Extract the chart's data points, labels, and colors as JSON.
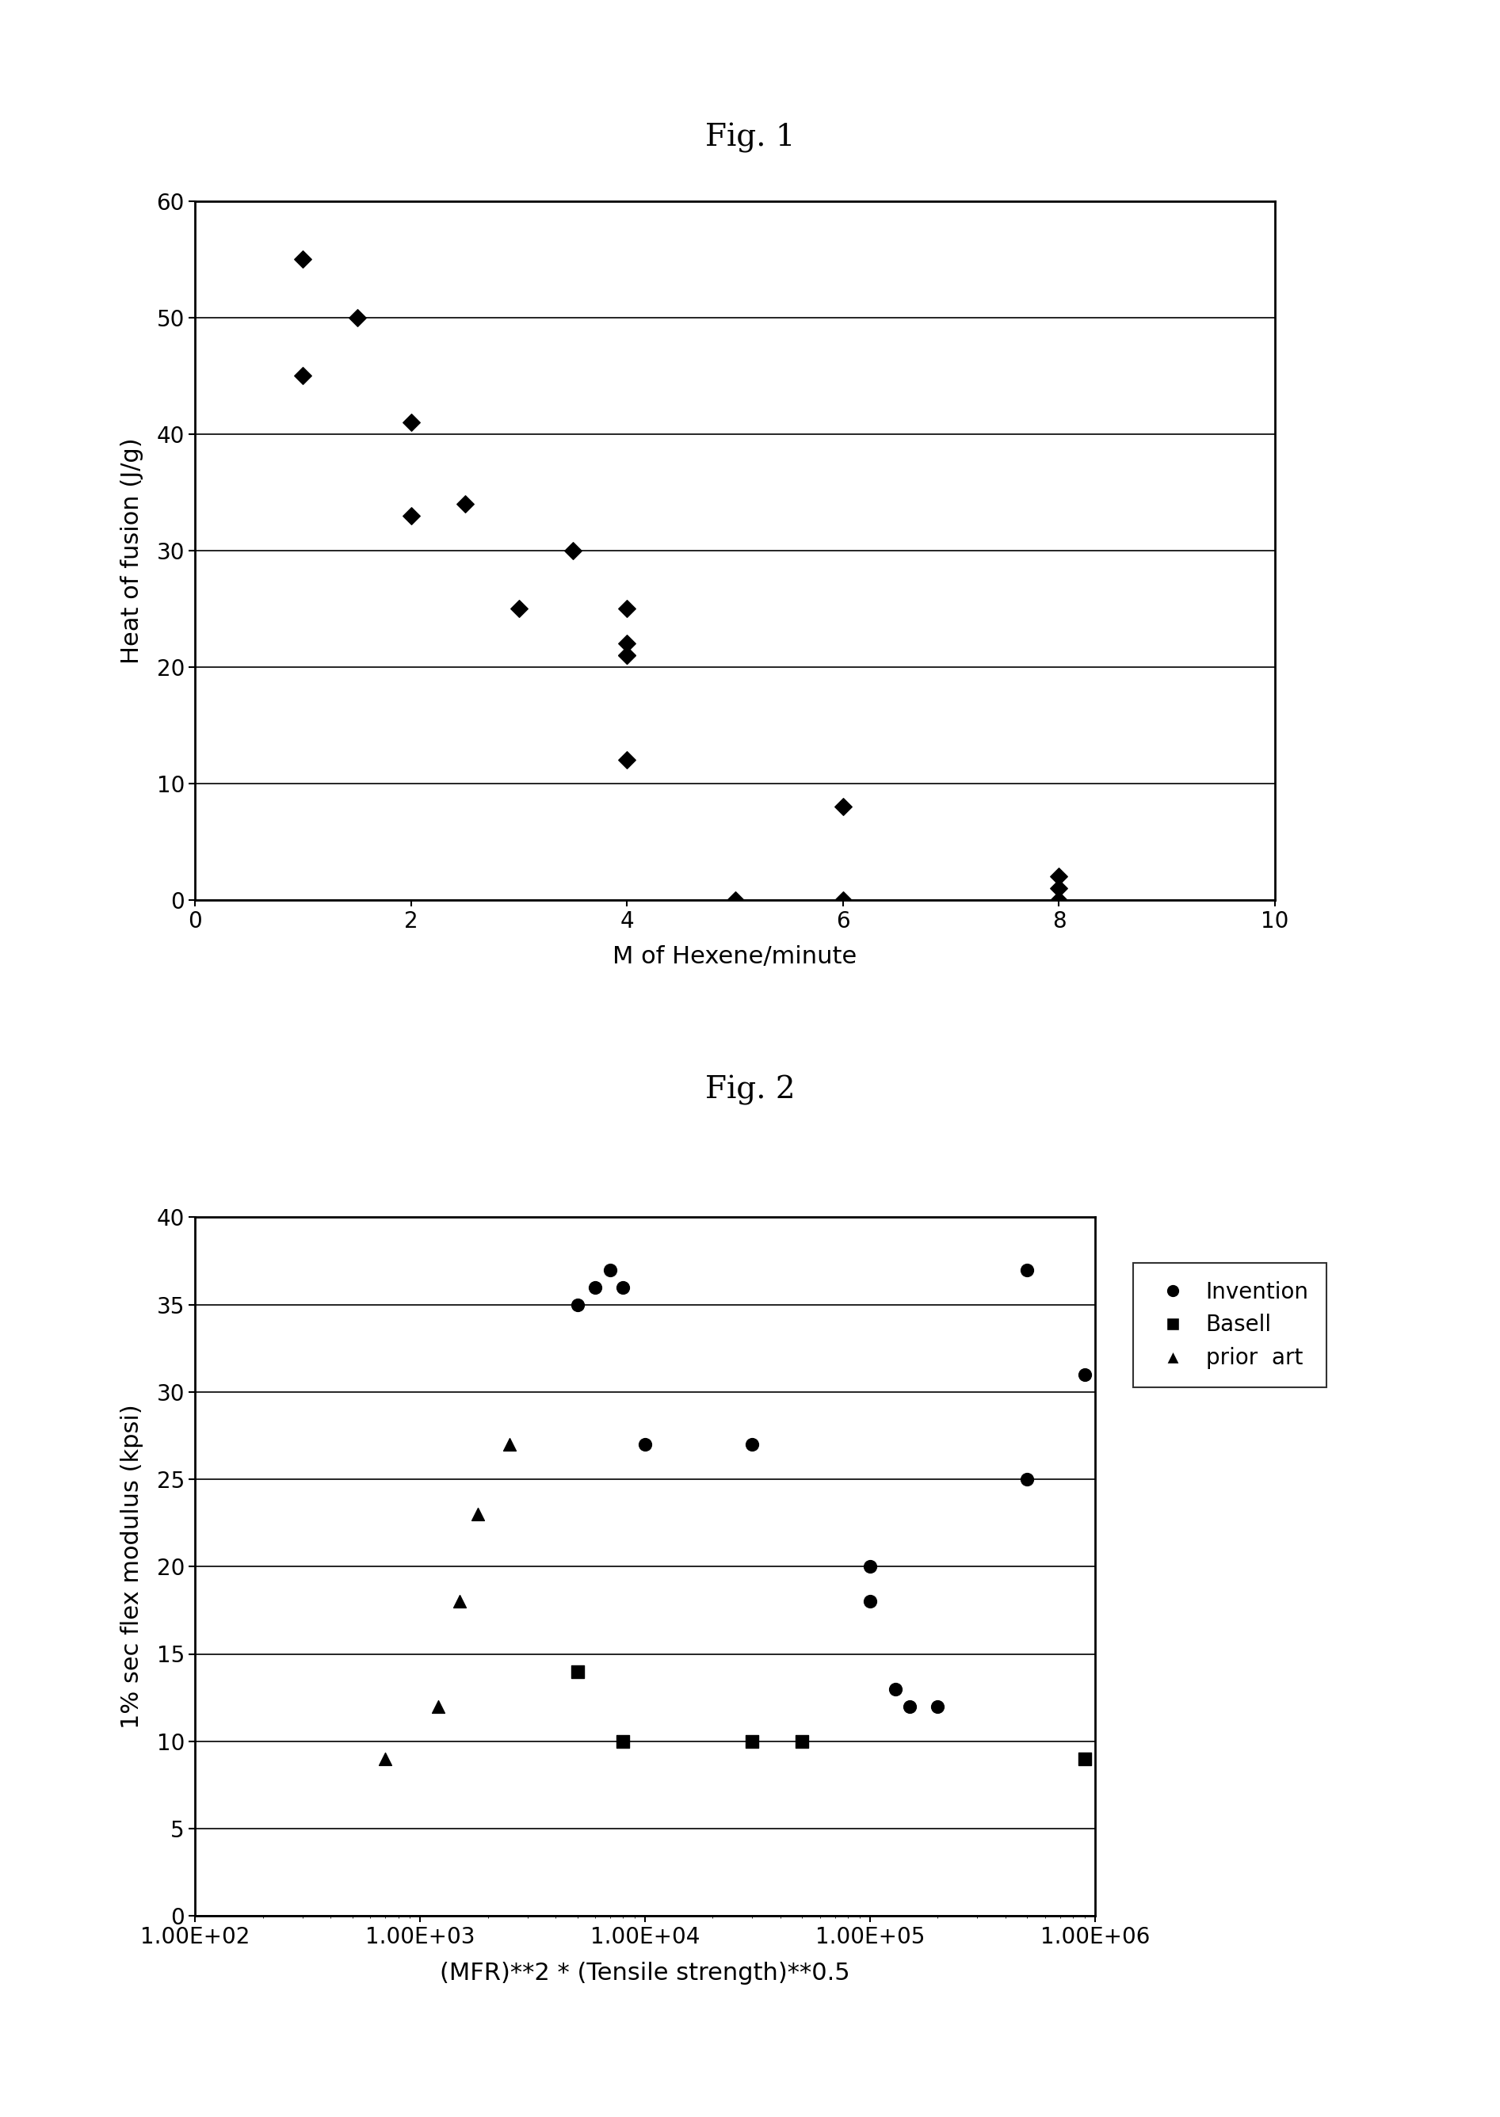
{
  "fig1_title": "Fig. 1",
  "fig1_xlabel": "M of Hexene/minute",
  "fig1_ylabel": "Heat of fusion (J/g)",
  "fig1_xlim": [
    0,
    10
  ],
  "fig1_ylim": [
    0,
    60
  ],
  "fig1_xticks": [
    0,
    2,
    4,
    6,
    8,
    10
  ],
  "fig1_yticks": [
    0,
    10,
    20,
    30,
    40,
    50,
    60
  ],
  "fig1_data_x": [
    1.0,
    1.0,
    1.5,
    2.0,
    2.0,
    2.5,
    3.0,
    3.5,
    4.0,
    4.0,
    4.0,
    4.0,
    4.0,
    5.0,
    6.0,
    6.0,
    8.0,
    8.0,
    8.0
  ],
  "fig1_data_y": [
    55,
    45,
    50,
    41,
    33,
    34,
    25,
    30,
    25,
    22,
    21,
    21,
    12,
    0,
    8,
    0,
    2,
    1,
    0
  ],
  "fig2_title": "Fig. 2",
  "fig2_xlabel": "(MFR)**2 * (Tensile strength)**0.5",
  "fig2_ylabel": "1% sec flex modulus (kpsi)",
  "fig2_ylim": [
    0,
    40
  ],
  "fig2_yticks": [
    0,
    5,
    10,
    15,
    20,
    25,
    30,
    35,
    40
  ],
  "fig2_invention_x": [
    5000,
    6000,
    7000,
    8000,
    10000,
    30000,
    100000,
    100000,
    130000,
    150000,
    200000,
    500000,
    500000,
    900000
  ],
  "fig2_invention_y": [
    35,
    36,
    37,
    36,
    27,
    27,
    20,
    18,
    13,
    12,
    12,
    25,
    37,
    31
  ],
  "fig2_basell_x": [
    5000,
    8000,
    30000,
    50000,
    900000
  ],
  "fig2_basell_y": [
    14,
    10,
    10,
    10,
    9
  ],
  "fig2_priorart_x": [
    700,
    1200,
    1500,
    1800,
    2500
  ],
  "fig2_priorart_y": [
    9,
    12,
    18,
    23,
    27
  ],
  "bg_color": "#ffffff",
  "marker_color": "#000000",
  "title_fontsize": 28,
  "label_fontsize": 22,
  "tick_fontsize": 20,
  "legend_fontsize": 20
}
